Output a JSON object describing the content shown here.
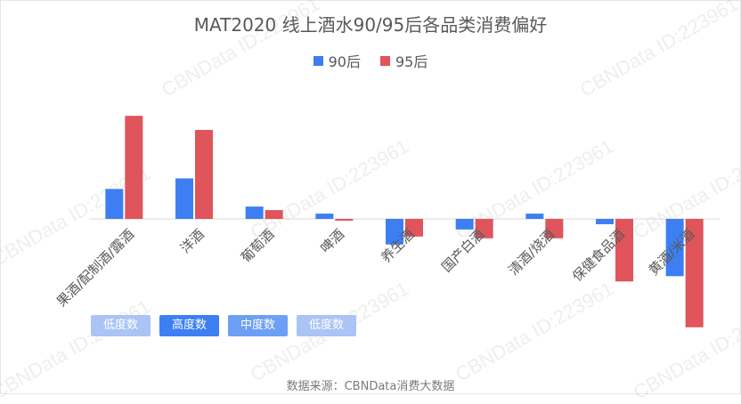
{
  "chart_data": {
    "type": "bar",
    "title": "MAT2020 线上酒水90/95后各品类消费偏好",
    "categories": [
      "果酒/配制酒/露酒",
      "洋酒",
      "葡萄酒",
      "啤酒",
      "养生酒",
      "国产白酒",
      "清酒/烧酒",
      "保健食品酒",
      "黄酒/米酒"
    ],
    "series": [
      {
        "name": "90后",
        "color": "#3d7ff3",
        "values": [
          34,
          46,
          14,
          6,
          -29,
          -12,
          6,
          -6,
          -65
        ]
      },
      {
        "name": "95后",
        "color": "#e0545c",
        "values": [
          117,
          101,
          10,
          -2,
          -20,
          -22,
          -22,
          -71,
          -123
        ]
      }
    ],
    "ylim": [
      -135,
      130
    ],
    "grid": false,
    "legend_position": "top",
    "source": "数据来源：CBNData消费大数据"
  },
  "buttons": [
    {
      "label": "低度数",
      "color": "#a9c4f5"
    },
    {
      "label": "高度数",
      "color": "#3d7ff3"
    },
    {
      "label": "中度数",
      "color": "#6d9ff4"
    },
    {
      "label": "低度数",
      "color": "#a9c4f5"
    }
  ],
  "watermark": "CBNData ID:223961"
}
